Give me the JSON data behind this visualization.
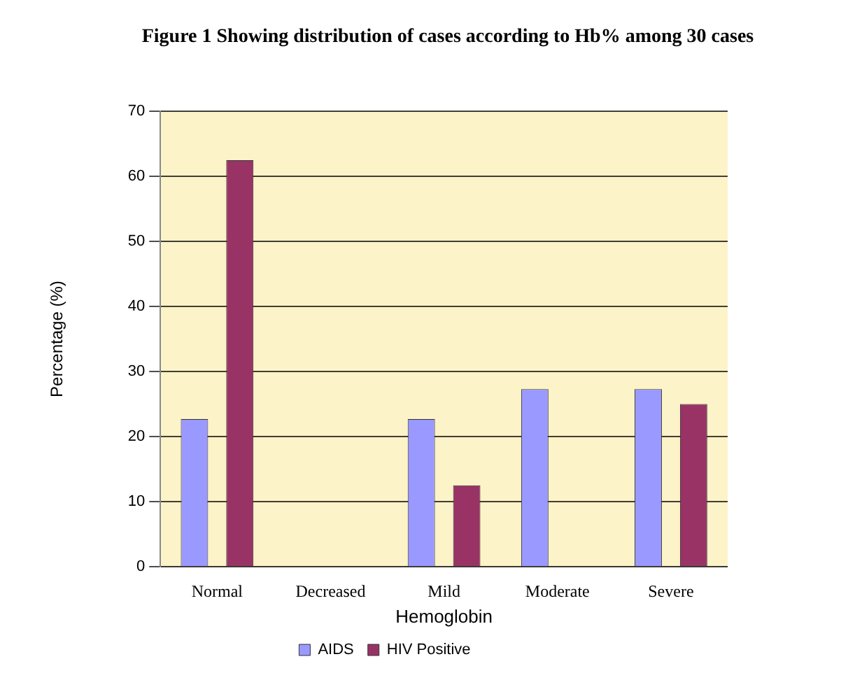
{
  "chart_data": {
    "type": "bar",
    "title": "Figure 1 Showing distribution of cases according to Hb% among 30 cases",
    "xlabel": "Hemoglobin",
    "ylabel": "Percentage (%)",
    "categories": [
      "Normal",
      "Decreased",
      "Mild",
      "Moderate",
      "Severe"
    ],
    "series": [
      {
        "name": "AIDS",
        "color": "#9999ff",
        "values": [
          22.7,
          0,
          22.7,
          27.3,
          27.3
        ]
      },
      {
        "name": "HIV Positive",
        "color": "#993366",
        "values": [
          62.5,
          0,
          12.5,
          0,
          25
        ]
      }
    ],
    "ylim": [
      0,
      70
    ],
    "yticks": [
      0,
      10,
      20,
      30,
      40,
      50,
      60,
      70
    ],
    "grid": "y",
    "legend": "bottom"
  }
}
